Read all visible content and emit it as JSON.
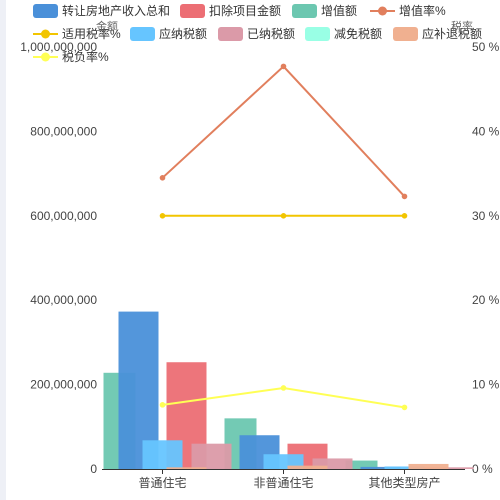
{
  "chart_data": {
    "type": "bar",
    "categories": [
      "普通住宅",
      "非普通住宅",
      "其他类型房产"
    ],
    "left_axis": {
      "name": "金额",
      "ylim": [
        0,
        1000000000
      ],
      "ticks": [
        0,
        200000000,
        400000000,
        600000000,
        800000000,
        1000000000
      ],
      "tick_labels": [
        "0",
        "200,000,000",
        "400,000,000",
        "600,000,000",
        "800,000,000",
        "1,000,000,000"
      ]
    },
    "right_axis": {
      "name": "税率",
      "ylim": [
        0,
        50
      ],
      "ticks": [
        0,
        10,
        20,
        30,
        40,
        50
      ],
      "tick_labels": [
        "0 %",
        "10 %",
        "20 %",
        "30 %",
        "40 %",
        "50 %"
      ]
    },
    "grid": false,
    "legend_position": "top",
    "series": [
      {
        "name": "转让房地产收入总和",
        "kind": "bar",
        "axis": "left",
        "color": "#4A90D9",
        "values": [
          373000000,
          80000000,
          5000000
        ]
      },
      {
        "name": "扣除项目金额",
        "kind": "bar",
        "axis": "left",
        "color": "#EC6E74",
        "values": [
          253000000,
          60000000,
          4000000
        ]
      },
      {
        "name": "增值额",
        "kind": "bar",
        "axis": "left",
        "color": "#6CC7B0",
        "values": [
          228000000,
          120000000,
          20000000
        ]
      },
      {
        "name": "增值率%",
        "kind": "line",
        "axis": "right",
        "color": "#E17F5D",
        "values": [
          34.5,
          47.7,
          32.3
        ]
      },
      {
        "name": "适用税率%",
        "kind": "line",
        "axis": "right",
        "color": "#F2C500",
        "values": [
          30,
          30,
          30
        ]
      },
      {
        "name": "应纳税额",
        "kind": "bar",
        "axis": "left",
        "color": "#66C5FF",
        "values": [
          68000000,
          35000000,
          6000000
        ]
      },
      {
        "name": "已纳税额",
        "kind": "bar",
        "axis": "left",
        "color": "#DB9AA8",
        "values": [
          60000000,
          25000000,
          4000000
        ]
      },
      {
        "name": "减免税额",
        "kind": "bar",
        "axis": "left",
        "color": "#99FFE5",
        "values": [
          0,
          0,
          0
        ]
      },
      {
        "name": "应补退税额",
        "kind": "bar",
        "axis": "left",
        "color": "#F0B090",
        "values": [
          4000000,
          8000000,
          12000000
        ]
      },
      {
        "name": "税负率%",
        "kind": "line",
        "axis": "right",
        "color": "#FFFF55",
        "values": [
          7.6,
          9.6,
          7.3
        ]
      }
    ]
  }
}
